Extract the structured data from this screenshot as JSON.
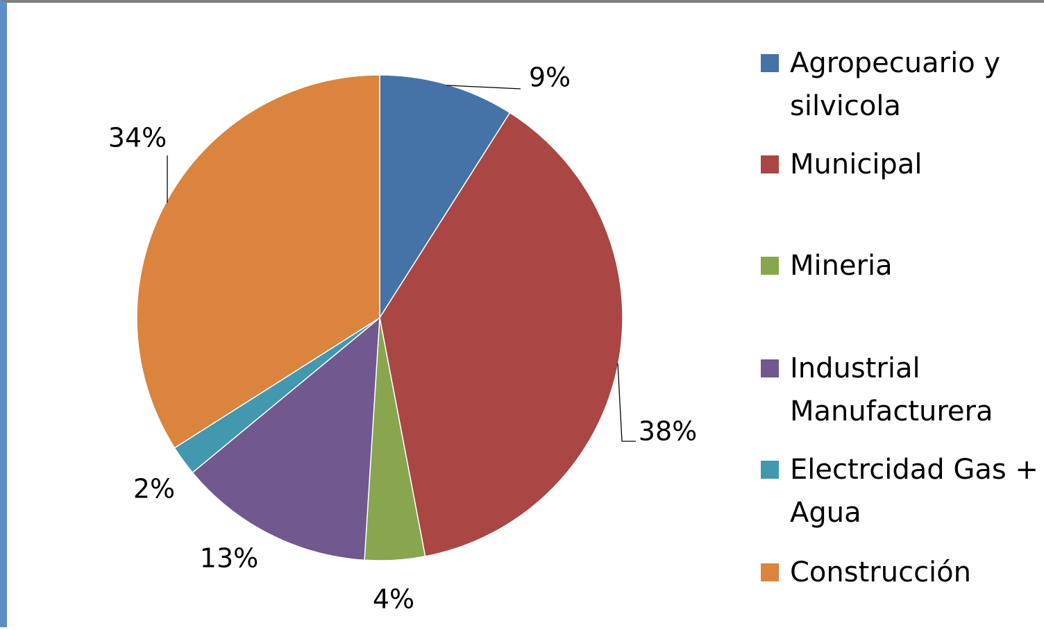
{
  "chart_data": {
    "type": "pie",
    "title": "",
    "series": [
      {
        "label": "Agropecuario y silvicola",
        "value": 9,
        "label_text": "9%",
        "color": "#4572a7"
      },
      {
        "label": "Municipal",
        "value": 38,
        "label_text": "38%",
        "color": "#aa4643"
      },
      {
        "label": "Mineria",
        "value": 4,
        "label_text": "4%",
        "color": "#89a54e"
      },
      {
        "label": "Industrial Manufacturera",
        "value": 13,
        "label_text": "13%",
        "color": "#71588f"
      },
      {
        "label": "Electrcidad Gas + Agua",
        "value": 2,
        "label_text": "2%",
        "color": "#4198af"
      },
      {
        "label": "Construcción",
        "value": 34,
        "label_text": "34%",
        "color": "#db843d"
      }
    ],
    "legend_position": "right"
  }
}
